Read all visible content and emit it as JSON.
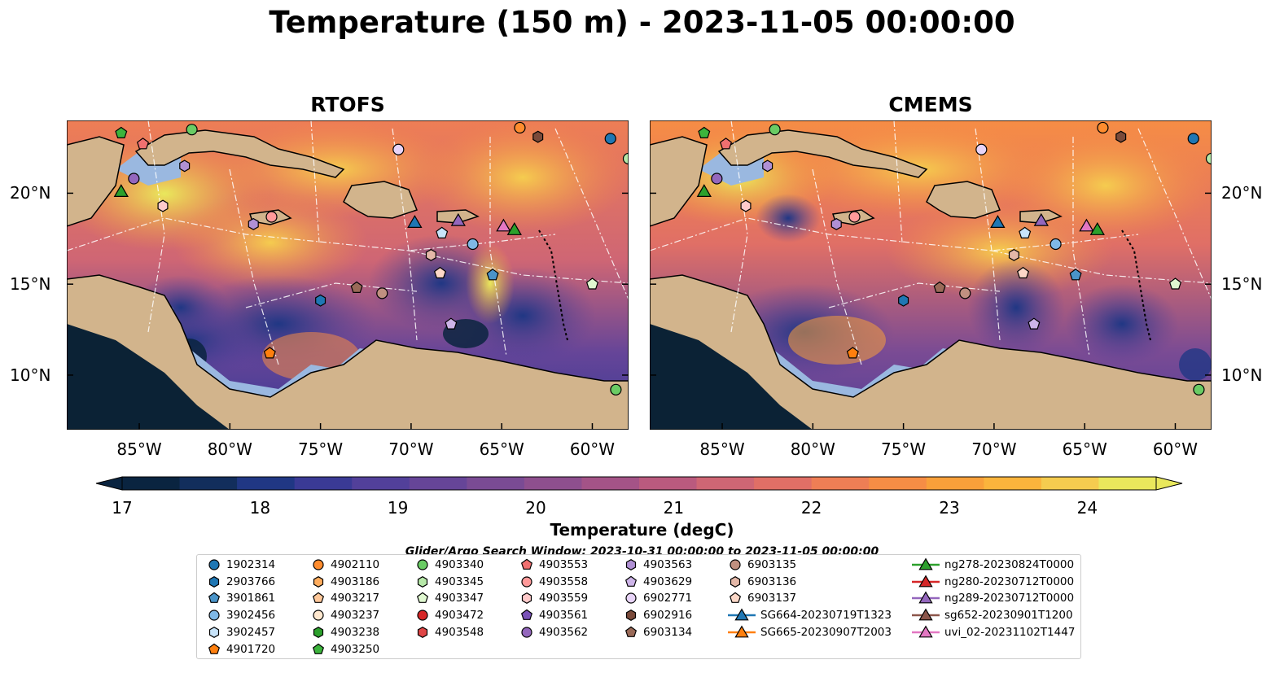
{
  "title": "Temperature (150 m) - 2023-11-05 00:00:00",
  "panels": [
    {
      "title": "RTOFS",
      "id": "rtofs"
    },
    {
      "title": "CMEMS",
      "id": "cmems"
    }
  ],
  "axes": {
    "lon_ticks": [
      "85°W",
      "80°W",
      "75°W",
      "70°W",
      "65°W",
      "60°W"
    ],
    "lat_ticks": [
      "20°N",
      "15°N",
      "10°N"
    ],
    "lon_range": [
      -89,
      -58
    ],
    "lat_range": [
      7,
      24
    ]
  },
  "colorbar": {
    "label": "Temperature (degC)",
    "ticks": [
      "17",
      "18",
      "19",
      "20",
      "21",
      "22",
      "23",
      "24"
    ],
    "range": [
      17,
      24.5
    ],
    "colors": [
      "#0a2440",
      "#122e5c",
      "#203784",
      "#3a3a95",
      "#52409a",
      "#664598",
      "#7a4b94",
      "#8e4f8e",
      "#a45387",
      "#ba5a7e",
      "#cf6674",
      "#e06f66",
      "#ee7e55",
      "#f68d45",
      "#f9a03a",
      "#fbb43c",
      "#f5cc4f",
      "#e9e85c"
    ]
  },
  "search_window": "Glider/Argo Search Window: 2023-10-31 00:00:00 to 2023-11-05 00:00:00",
  "legend": {
    "columns": [
      [
        {
          "label": "1902314",
          "marker": "circle",
          "color": "#1f77b4"
        },
        {
          "label": "2903766",
          "marker": "hexagon",
          "color": "#1f77b4"
        },
        {
          "label": "3901861",
          "marker": "pentagon",
          "color": "#4a94c9"
        },
        {
          "label": "3902456",
          "marker": "circle",
          "color": "#7fb8e6"
        },
        {
          "label": "3902457",
          "marker": "hexagon",
          "color": "#c8e4fa"
        },
        {
          "label": "4901720",
          "marker": "pentagon",
          "color": "#ff7f0e"
        }
      ],
      [
        {
          "label": "4902110",
          "marker": "circle",
          "color": "#ff8c2e"
        },
        {
          "label": "4903186",
          "marker": "hexagon",
          "color": "#ffad5e"
        },
        {
          "label": "4903217",
          "marker": "pentagon",
          "color": "#ffc89a"
        },
        {
          "label": "4903237",
          "marker": "circle",
          "color": "#ffe8cf"
        },
        {
          "label": "4903238",
          "marker": "hexagon",
          "color": "#2ca02c"
        },
        {
          "label": "4903250",
          "marker": "pentagon",
          "color": "#3cb43c"
        }
      ],
      [
        {
          "label": "4903340",
          "marker": "circle",
          "color": "#6acc64"
        },
        {
          "label": "4903345",
          "marker": "hexagon",
          "color": "#b6e8a8"
        },
        {
          "label": "4903347",
          "marker": "pentagon",
          "color": "#e0f8d0"
        },
        {
          "label": "4903472",
          "marker": "circle",
          "color": "#d62728"
        },
        {
          "label": "4903548",
          "marker": "hexagon",
          "color": "#e04646"
        }
      ],
      [
        {
          "label": "4903553",
          "marker": "pentagon",
          "color": "#f07070"
        },
        {
          "label": "4903558",
          "marker": "circle",
          "color": "#ff9a9a"
        },
        {
          "label": "4903559",
          "marker": "hexagon",
          "color": "#ffcaca"
        },
        {
          "label": "4903561",
          "marker": "pentagon",
          "color": "#7a52b8"
        },
        {
          "label": "4903562",
          "marker": "circle",
          "color": "#9467bd"
        }
      ],
      [
        {
          "label": "4903563",
          "marker": "hexagon",
          "color": "#b090d4"
        },
        {
          "label": "4903629",
          "marker": "pentagon",
          "color": "#cdb4e8"
        },
        {
          "label": "6902771",
          "marker": "circle",
          "color": "#e8d4f8"
        },
        {
          "label": "6902916",
          "marker": "hexagon",
          "color": "#7a4a3a"
        },
        {
          "label": "6903134",
          "marker": "pentagon",
          "color": "#9a6a58"
        }
      ],
      [
        {
          "label": "6903135",
          "marker": "circle",
          "color": "#c09080"
        },
        {
          "label": "6903136",
          "marker": "hexagon",
          "color": "#e4b8a8"
        },
        {
          "label": "6903137",
          "marker": "pentagon",
          "color": "#fcd8c8"
        },
        {
          "label": "SG664-20230719T1323",
          "marker": "triangle-line",
          "color": "#1f77b4"
        },
        {
          "label": "SG665-20230907T2003",
          "marker": "triangle-line",
          "color": "#ff7f0e"
        }
      ],
      [
        {
          "label": "ng278-20230824T0000",
          "marker": "triangle-line",
          "color": "#2ca02c"
        },
        {
          "label": "ng280-20230712T0000",
          "marker": "triangle-line",
          "color": "#d62728"
        },
        {
          "label": "ng289-20230712T0000",
          "marker": "triangle-line",
          "color": "#9467bd"
        },
        {
          "label": "sg652-20230901T1200",
          "marker": "triangle-line",
          "color": "#8c564b"
        },
        {
          "label": "uvi_02-20231102T1447",
          "marker": "triangle-line",
          "color": "#e377c2"
        }
      ]
    ]
  },
  "floats": [
    {
      "marker": "circle",
      "color": "#1f77b4",
      "lon": -59,
      "lat": 23
    },
    {
      "marker": "circle",
      "color": "#ff8c2e",
      "lon": -64,
      "lat": 23.6
    },
    {
      "marker": "hexagon",
      "color": "#7a4a3a",
      "lon": -63,
      "lat": 23.1
    },
    {
      "marker": "circle",
      "color": "#e8d4f8",
      "lon": -70.7,
      "lat": 22.4
    },
    {
      "marker": "circle",
      "color": "#6acc64",
      "lon": -82.1,
      "lat": 23.5
    },
    {
      "marker": "pentagon",
      "color": "#3cb43c",
      "lon": -86,
      "lat": 23.3
    },
    {
      "marker": "pentagon",
      "color": "#f07070",
      "lon": -84.8,
      "lat": 22.7
    },
    {
      "marker": "hexagon",
      "color": "#b090d4",
      "lon": -82.5,
      "lat": 21.5
    },
    {
      "marker": "circle",
      "color": "#9467bd",
      "lon": -85.3,
      "lat": 20.8
    },
    {
      "marker": "hexagon",
      "color": "#ffcaca",
      "lon": -83.7,
      "lat": 19.3
    },
    {
      "marker": "circle",
      "color": "#ff9a9a",
      "lon": -77.7,
      "lat": 18.7
    },
    {
      "marker": "hexagon",
      "color": "#b090d4",
      "lon": -78.7,
      "lat": 18.3
    },
    {
      "marker": "pentagon",
      "color": "#c8e4fa",
      "lon": -68.3,
      "lat": 17.8
    },
    {
      "marker": "circle",
      "color": "#7fb8e6",
      "lon": -66.6,
      "lat": 17.2
    },
    {
      "marker": "hexagon",
      "color": "#e4b8a8",
      "lon": -68.9,
      "lat": 16.6
    },
    {
      "marker": "pentagon",
      "color": "#fcd8c8",
      "lon": -68.4,
      "lat": 15.6
    },
    {
      "marker": "pentagon",
      "color": "#4a94c9",
      "lon": -65.5,
      "lat": 15.5
    },
    {
      "marker": "pentagon",
      "color": "#9a6a58",
      "lon": -73,
      "lat": 14.8
    },
    {
      "marker": "circle",
      "color": "#c09080",
      "lon": -71.6,
      "lat": 14.5
    },
    {
      "marker": "hexagon",
      "color": "#1f77b4",
      "lon": -75,
      "lat": 14.1
    },
    {
      "marker": "pentagon",
      "color": "#cdb4e8",
      "lon": -67.8,
      "lat": 12.8
    },
    {
      "marker": "pentagon",
      "color": "#ff7f0e",
      "lon": -77.8,
      "lat": 11.2
    },
    {
      "marker": "pentagon",
      "color": "#e0f8d0",
      "lon": -60,
      "lat": 15
    },
    {
      "marker": "circle",
      "color": "#6acc64",
      "lon": -58.7,
      "lat": 9.2
    },
    {
      "marker": "circle",
      "color": "#b6e8a8",
      "lon": -58,
      "lat": 21.9
    }
  ],
  "gliders": [
    {
      "color": "#2ca02c",
      "lon": -86,
      "lat": 20.1
    },
    {
      "color": "#1f77b4",
      "lon": -69.8,
      "lat": 18.4
    },
    {
      "color": "#9467bd",
      "lon": -67.4,
      "lat": 18.5
    },
    {
      "color": "#e377c2",
      "lon": -64.9,
      "lat": 18.2
    },
    {
      "color": "#2ca02c",
      "lon": -64.3,
      "lat": 18
    }
  ]
}
